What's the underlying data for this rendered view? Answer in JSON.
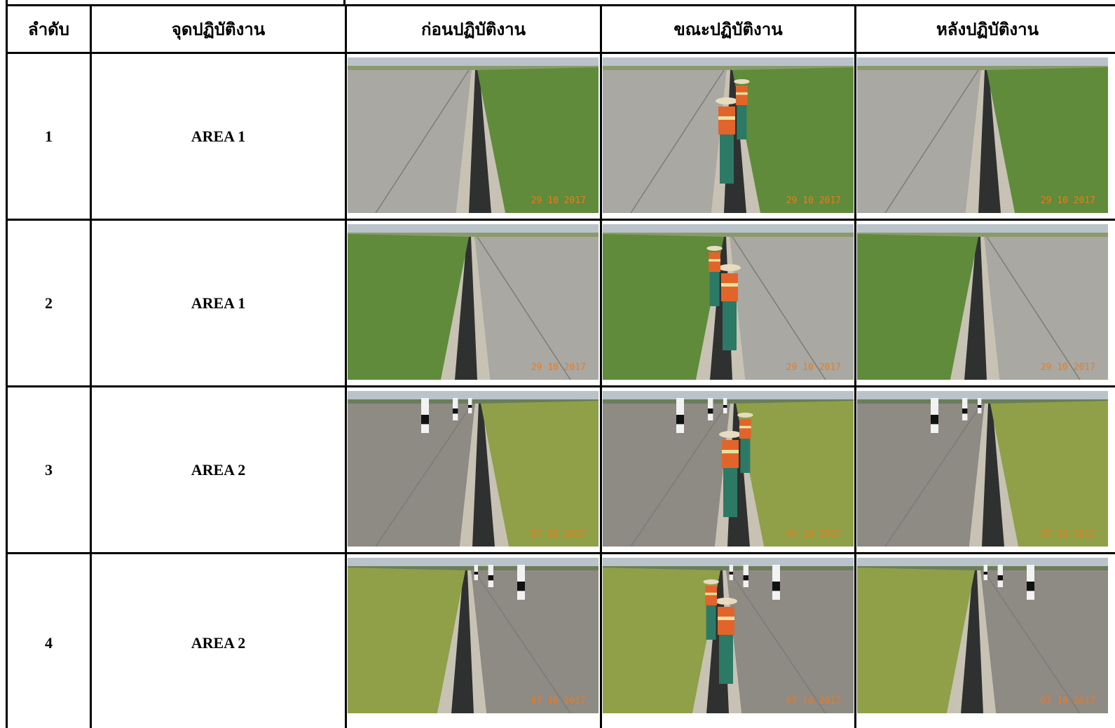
{
  "table": {
    "header": [
      "ลำดับ",
      "จุดปฏิบัติงาน",
      "ก่อนปฏิบัติงาน",
      "ขณะปฏิบัติงาน",
      "หลังปฏิบัติงาน"
    ],
    "rows": [
      {
        "no": "1",
        "location": "AREA 1",
        "photo_dates": [
          "29 10 2017",
          "29 10 2017",
          "29 10 2017"
        ]
      },
      {
        "no": "2",
        "location": "AREA 1",
        "photo_dates": [
          "29 10 2017",
          "29 10 2017",
          "29 10 2017"
        ]
      },
      {
        "no": "3",
        "location": "AREA 2",
        "photo_dates": [
          "07 10 2017",
          "07 10 2017",
          "07 10 2017"
        ]
      },
      {
        "no": "4",
        "location": "AREA 2",
        "photo_dates": [
          "07 10 2017",
          "07 10 2017",
          "07 10 2017"
        ]
      }
    ]
  }
}
